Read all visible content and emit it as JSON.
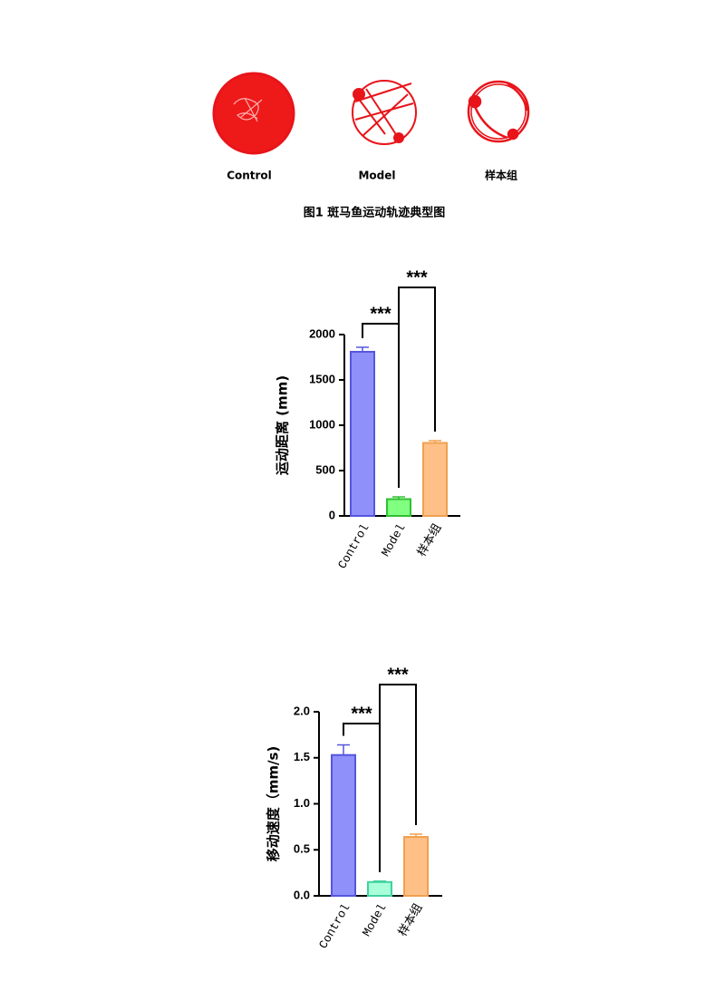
{
  "figure": {
    "labels": [
      "Control",
      "Model",
      "样本组"
    ],
    "caption": "图1 斑马鱼运动轨迹典型图"
  },
  "chart_data": [
    {
      "type": "bar",
      "ylabel": "运动距离 (mm)",
      "categories": [
        "Control",
        "Model",
        "样本组"
      ],
      "values": [
        1810,
        185,
        805
      ],
      "errors": [
        50,
        25,
        25
      ],
      "colors": [
        "#9090fb",
        "#80ff80",
        "#ffc088"
      ],
      "edge_colors": [
        "#5555e0",
        "#30c030",
        "#f0a050"
      ],
      "ylim": [
        0,
        2000
      ],
      "yticks": [
        0,
        500,
        1000,
        1500,
        2000
      ],
      "significance": [
        "***",
        "***"
      ]
    },
    {
      "type": "bar",
      "ylabel": "移动速度（mm/s)",
      "categories": [
        "Control",
        "Model",
        "样本组"
      ],
      "values": [
        1.53,
        0.15,
        0.64
      ],
      "errors": [
        0.11,
        0.01,
        0.03
      ],
      "colors": [
        "#9090fb",
        "#a8ffd8",
        "#ffc088"
      ],
      "edge_colors": [
        "#5555e0",
        "#40d0a0",
        "#f0a050"
      ],
      "ylim": [
        0,
        2.0
      ],
      "yticks": [
        {
          "value": 0,
          "label": "0.0"
        },
        0.5,
        {
          "value": 1,
          "label": "1.0"
        },
        1.5,
        {
          "value": 2,
          "label": "2.0"
        }
      ],
      "significance": [
        "***",
        "***"
      ]
    }
  ]
}
